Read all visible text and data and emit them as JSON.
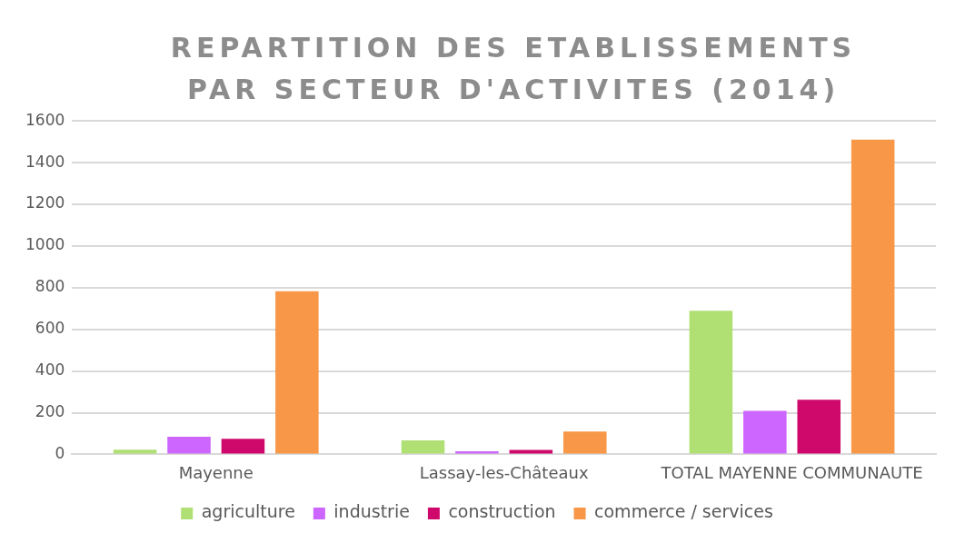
{
  "chart_data": {
    "type": "bar",
    "title": "REPARTITION DES ETABLISSEMENTS PAR SECTEUR D'ACTIVITES (2014)",
    "categories": [
      "Mayenne",
      "Lassay-les-Châteaux",
      "TOTAL MAYENNE COMMUNAUTE"
    ],
    "series": [
      {
        "name": "agriculture",
        "color": "#b0df74",
        "values": [
          22,
          67,
          689
        ]
      },
      {
        "name": "industrie",
        "color": "#cc66ff",
        "values": [
          85,
          15,
          209
        ]
      },
      {
        "name": "construction",
        "color": "#cf086b",
        "values": [
          75,
          21,
          262
        ]
      },
      {
        "name": "commerce / services",
        "color": "#f79747",
        "values": [
          783,
          110,
          1510
        ]
      }
    ],
    "ylim": [
      0,
      1600
    ],
    "yticks": [
      0,
      200,
      400,
      600,
      800,
      1000,
      1200,
      1400,
      1600
    ],
    "grid": "y",
    "legend": "bottom"
  }
}
